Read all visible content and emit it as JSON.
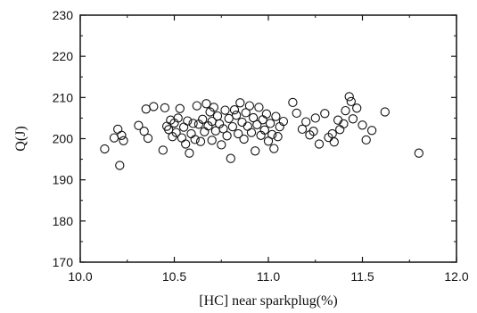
{
  "chart_data": {
    "type": "scatter",
    "title": "",
    "xlabel": "[HC] near sparkplug(%)",
    "ylabel": "Q(J)",
    "xlim": [
      10.0,
      12.0
    ],
    "ylim": [
      170,
      230
    ],
    "xticks": [
      10.0,
      10.5,
      11.0,
      11.5,
      12.0
    ],
    "xtick_labels": [
      "10.0",
      "10.5",
      "11.0",
      "11.5",
      "12.0"
    ],
    "yticks": [
      170,
      180,
      190,
      200,
      210,
      220,
      230
    ],
    "ytick_labels": [
      "170",
      "180",
      "190",
      "200",
      "210",
      "220",
      "230"
    ],
    "grid": false,
    "marker": "open-circle",
    "series": [
      {
        "name": "",
        "points": [
          [
            10.13,
            197.5
          ],
          [
            10.18,
            200.2
          ],
          [
            10.2,
            202.3
          ],
          [
            10.21,
            193.5
          ],
          [
            10.22,
            200.8
          ],
          [
            10.23,
            199.5
          ],
          [
            10.31,
            203.2
          ],
          [
            10.34,
            201.8
          ],
          [
            10.35,
            207.2
          ],
          [
            10.36,
            200.1
          ],
          [
            10.39,
            207.8
          ],
          [
            10.44,
            197.2
          ],
          [
            10.45,
            207.5
          ],
          [
            10.46,
            203.0
          ],
          [
            10.47,
            202.2
          ],
          [
            10.48,
            204.5
          ],
          [
            10.49,
            200.5
          ],
          [
            10.5,
            203.8
          ],
          [
            10.51,
            201.5
          ],
          [
            10.52,
            205.0
          ],
          [
            10.53,
            207.3
          ],
          [
            10.54,
            200.2
          ],
          [
            10.55,
            202.8
          ],
          [
            10.56,
            198.7
          ],
          [
            10.57,
            204.3
          ],
          [
            10.58,
            196.5
          ],
          [
            10.59,
            201.2
          ],
          [
            10.6,
            203.7
          ],
          [
            10.61,
            199.8
          ],
          [
            10.62,
            208.0
          ],
          [
            10.63,
            203.5
          ],
          [
            10.64,
            199.3
          ],
          [
            10.65,
            204.7
          ],
          [
            10.66,
            201.7
          ],
          [
            10.67,
            208.5
          ],
          [
            10.68,
            203.1
          ],
          [
            10.69,
            206.5
          ],
          [
            10.7,
            199.6
          ],
          [
            10.7,
            204.2
          ],
          [
            10.71,
            207.6
          ],
          [
            10.72,
            201.9
          ],
          [
            10.73,
            205.5
          ],
          [
            10.74,
            203.6
          ],
          [
            10.75,
            198.5
          ],
          [
            10.76,
            202.4
          ],
          [
            10.77,
            206.9
          ],
          [
            10.78,
            200.7
          ],
          [
            10.79,
            204.9
          ],
          [
            10.8,
            195.2
          ],
          [
            10.81,
            202.9
          ],
          [
            10.82,
            207.0
          ],
          [
            10.83,
            205.7
          ],
          [
            10.84,
            201.2
          ],
          [
            10.85,
            208.7
          ],
          [
            10.86,
            204.0
          ],
          [
            10.87,
            199.9
          ],
          [
            10.88,
            206.3
          ],
          [
            10.89,
            203.0
          ],
          [
            10.9,
            208.0
          ],
          [
            10.91,
            201.5
          ],
          [
            10.92,
            205.1
          ],
          [
            10.93,
            197.0
          ],
          [
            10.94,
            203.4
          ],
          [
            10.95,
            207.6
          ],
          [
            10.96,
            200.8
          ],
          [
            10.97,
            204.6
          ],
          [
            10.98,
            202.1
          ],
          [
            10.99,
            206.0
          ],
          [
            11.0,
            199.4
          ],
          [
            11.01,
            203.7
          ],
          [
            11.02,
            201.0
          ],
          [
            11.03,
            197.6
          ],
          [
            11.04,
            205.4
          ],
          [
            11.05,
            200.5
          ],
          [
            11.06,
            202.9
          ],
          [
            11.08,
            204.2
          ],
          [
            11.13,
            208.8
          ],
          [
            11.15,
            206.2
          ],
          [
            11.18,
            202.3
          ],
          [
            11.2,
            204.1
          ],
          [
            11.22,
            200.9
          ],
          [
            11.24,
            201.8
          ],
          [
            11.25,
            205.0
          ],
          [
            11.27,
            198.7
          ],
          [
            11.3,
            206.1
          ],
          [
            11.32,
            200.3
          ],
          [
            11.34,
            201.2
          ],
          [
            11.35,
            199.2
          ],
          [
            11.37,
            204.5
          ],
          [
            11.38,
            202.2
          ],
          [
            11.4,
            203.6
          ],
          [
            11.41,
            206.8
          ],
          [
            11.43,
            210.2
          ],
          [
            11.44,
            209.0
          ],
          [
            11.45,
            204.8
          ],
          [
            11.47,
            207.4
          ],
          [
            11.5,
            203.3
          ],
          [
            11.52,
            199.7
          ],
          [
            11.55,
            202.0
          ],
          [
            11.62,
            206.5
          ],
          [
            11.8,
            196.5
          ]
        ]
      }
    ]
  }
}
